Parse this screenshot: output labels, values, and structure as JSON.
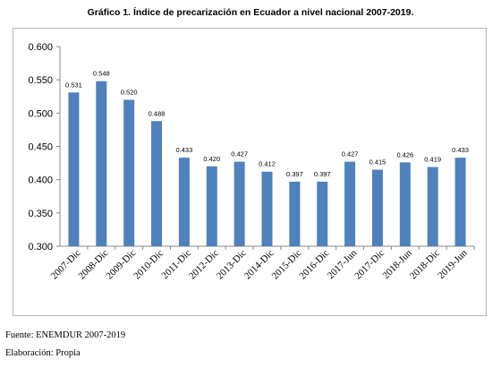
{
  "title": "Gráfico 1. Índice de precarización en Ecuador a nivel nacional 2007-2019.",
  "chart_data": {
    "type": "bar",
    "title": "Gráfico 1. Índice de precarización en Ecuador a nivel nacional 2007-2019.",
    "categories": [
      "2007-Dic",
      "2008-Dic",
      "2009-Dic",
      "2010-Dic",
      "2011-Dic",
      "2012-Dic",
      "2013-Dic",
      "2014-Dic",
      "2015-Dic",
      "2016-Dic",
      "2017-Jun",
      "2017-Dic",
      "2018-Jun",
      "2018-Dic",
      "2019-Jun"
    ],
    "values": [
      0.531,
      0.548,
      0.52,
      0.488,
      0.433,
      0.42,
      0.427,
      0.412,
      0.397,
      0.397,
      0.427,
      0.415,
      0.426,
      0.419,
      0.433
    ],
    "value_labels": [
      "0.531",
      "0.548",
      "0.520",
      "0.488",
      "0.433",
      "0.420",
      "0.427",
      "0.412",
      "0.397",
      "0.397",
      "0.427",
      "0.415",
      "0.426",
      "0.419",
      "0.433"
    ],
    "y_ticks": [
      "0.300",
      "0.350",
      "0.400",
      "0.450",
      "0.500",
      "0.550",
      "0.600"
    ],
    "ylim": [
      0.3,
      0.6
    ],
    "xlabel": "",
    "ylabel": "",
    "grid": false,
    "legend": "none",
    "bar_color": "#4f81bd"
  },
  "notes": {
    "source": "Fuente: ENEMDUR 2007-2019",
    "elaboration": "Elaboración: Propia"
  }
}
